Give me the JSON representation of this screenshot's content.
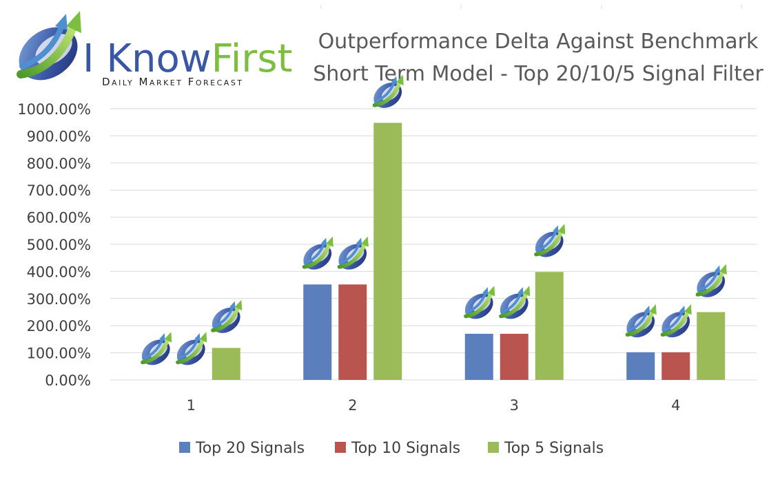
{
  "logo": {
    "word1": "I Know",
    "word2": "First",
    "tagline": "Daily Market Forecast",
    "colors": {
      "blue": "#3a56a6",
      "green": "#7cbe3f"
    }
  },
  "chart_data": {
    "type": "bar",
    "title": [
      "Outperformance Delta Against Benchmark",
      "Short Term Model - Top 20/10/5 Signal Filter"
    ],
    "categories": [
      "1",
      "2",
      "3",
      "4"
    ],
    "series": [
      {
        "name": "Top 20 Signals",
        "color": "#5a7fbc",
        "values": [
          0,
          352,
          170,
          102
        ]
      },
      {
        "name": "Top 10 Signals",
        "color": "#b9554e",
        "values": [
          0,
          352,
          170,
          102
        ]
      },
      {
        "name": "Top 5 Signals",
        "color": "#9bbb59",
        "values": [
          118,
          948,
          398,
          250
        ]
      }
    ],
    "y_ticks": [
      "0.00%",
      "100.00%",
      "200.00%",
      "300.00%",
      "400.00%",
      "500.00%",
      "600.00%",
      "700.00%",
      "800.00%",
      "900.00%",
      "1000.00%"
    ],
    "ylim": [
      0,
      1000
    ],
    "ylabel": "",
    "xlabel": "",
    "grid": true,
    "legend_position": "bottom",
    "annotation_icon": "i-know-first-logo-icon"
  }
}
